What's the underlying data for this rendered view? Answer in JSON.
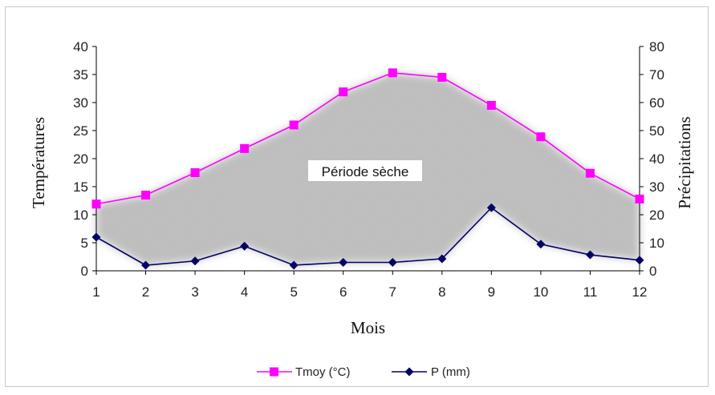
{
  "chart_data": {
    "type": "line",
    "xlabel": "Mois",
    "ylabel_left": "Températures",
    "ylabel_right": "Précipitations",
    "x": [
      1,
      2,
      3,
      4,
      5,
      6,
      7,
      8,
      9,
      10,
      11,
      12
    ],
    "ylim_left": [
      0,
      40
    ],
    "yticks_left": [
      0,
      5,
      10,
      15,
      20,
      25,
      30,
      35,
      40
    ],
    "ylim_right": [
      0,
      80
    ],
    "yticks_right": [
      0,
      10,
      20,
      30,
      40,
      50,
      60,
      70,
      80
    ],
    "series": [
      {
        "name": "Tmoy (°C)",
        "axis": "left",
        "color": "#ff00ff",
        "marker": "square",
        "values": [
          11.9,
          13.5,
          17.5,
          21.8,
          26.0,
          31.9,
          35.3,
          34.5,
          29.5,
          23.9,
          17.4,
          12.8
        ]
      },
      {
        "name": "P (mm)",
        "axis": "right",
        "color": "#000066",
        "marker": "diamond",
        "values": [
          12.0,
          2.0,
          3.5,
          8.8,
          2.0,
          3.0,
          3.0,
          4.3,
          22.5,
          9.5,
          5.7,
          3.8
        ]
      }
    ],
    "annotation": "Période sèche",
    "grid": false,
    "legend_position": "bottom"
  }
}
